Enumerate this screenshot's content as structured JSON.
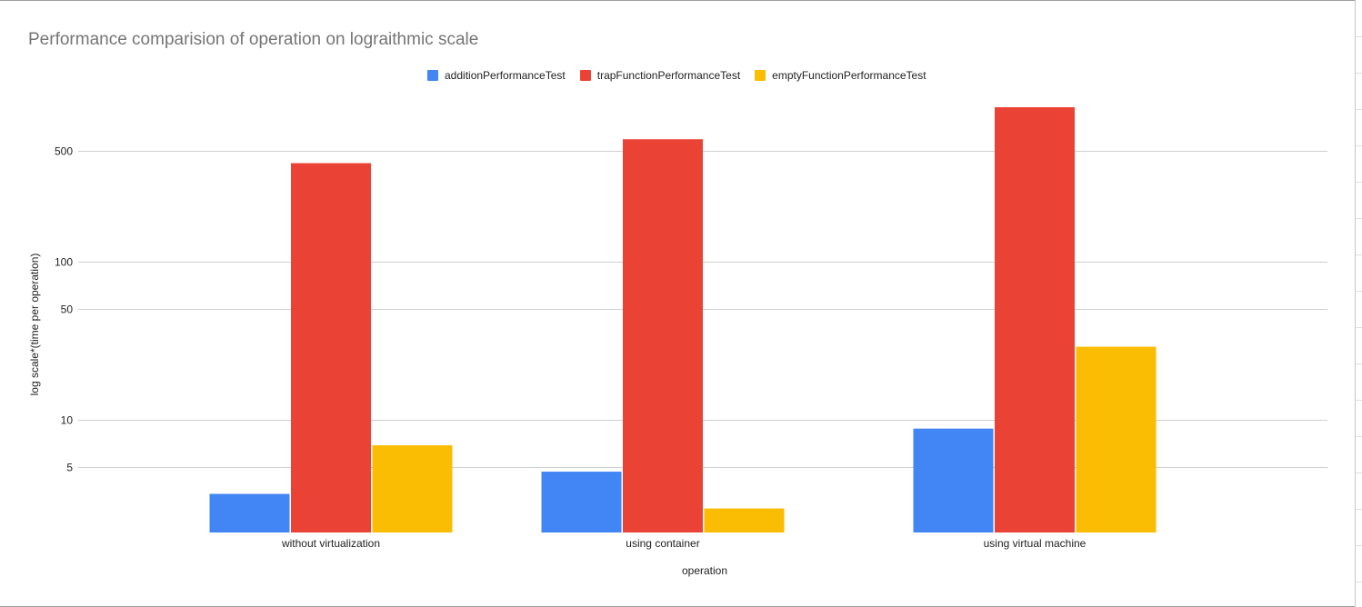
{
  "chart_data": {
    "type": "bar",
    "title": "Performance comparision of operation on lograithmic scale",
    "xlabel": "operation",
    "ylabel": "log scale*(time per operation)",
    "y_scale": "log",
    "ylim": [
      2.75,
      870
    ],
    "y_ticks": [
      5,
      10,
      50,
      100,
      500
    ],
    "grid": true,
    "legend_position": "top",
    "categories": [
      "without virtualization",
      "using container",
      "using virtual machine"
    ],
    "series": [
      {
        "name": "additionPerformanceTest",
        "color": "#4285f4",
        "values": [
          3.4,
          4.7,
          8.8
        ]
      },
      {
        "name": "trapFunctionPerformanceTest",
        "color": "#ea4335",
        "values": [
          420,
          595,
          980
        ]
      },
      {
        "name": "emptyFunctionPerformanceTest",
        "color": "#fbbc04",
        "values": [
          6.9,
          2.75,
          29
        ]
      }
    ]
  }
}
